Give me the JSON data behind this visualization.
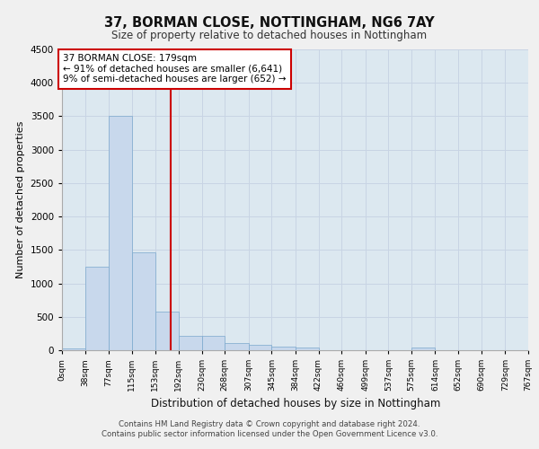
{
  "title": "37, BORMAN CLOSE, NOTTINGHAM, NG6 7AY",
  "subtitle": "Size of property relative to detached houses in Nottingham",
  "xlabel": "Distribution of detached houses by size in Nottingham",
  "ylabel": "Number of detached properties",
  "footer_line1": "Contains HM Land Registry data © Crown copyright and database right 2024.",
  "footer_line2": "Contains public sector information licensed under the Open Government Licence v3.0.",
  "property_size": 179,
  "annotation_line1": "37 BORMAN CLOSE: 179sqm",
  "annotation_line2": "← 91% of detached houses are smaller (6,641)",
  "annotation_line3": "9% of semi-detached houses are larger (652) →",
  "bar_color": "#c8d8ec",
  "bar_edge_color": "#7aa8cc",
  "vline_color": "#cc0000",
  "annotation_box_color": "#ffffff",
  "annotation_box_edge": "#cc0000",
  "grid_color": "#c8d4e4",
  "background_color": "#dce8f0",
  "fig_background": "#f0f0f0",
  "ylim": [
    0,
    4500
  ],
  "yticks": [
    0,
    500,
    1000,
    1500,
    2000,
    2500,
    3000,
    3500,
    4000,
    4500
  ],
  "bin_edges": [
    0,
    38,
    77,
    115,
    153,
    192,
    230,
    268,
    307,
    345,
    384,
    422,
    460,
    499,
    537,
    575,
    614,
    652,
    690,
    729,
    767
  ],
  "bin_values": [
    30,
    1250,
    3500,
    1460,
    580,
    220,
    215,
    110,
    75,
    55,
    40,
    5,
    0,
    0,
    0,
    40,
    0,
    0,
    0,
    0
  ]
}
